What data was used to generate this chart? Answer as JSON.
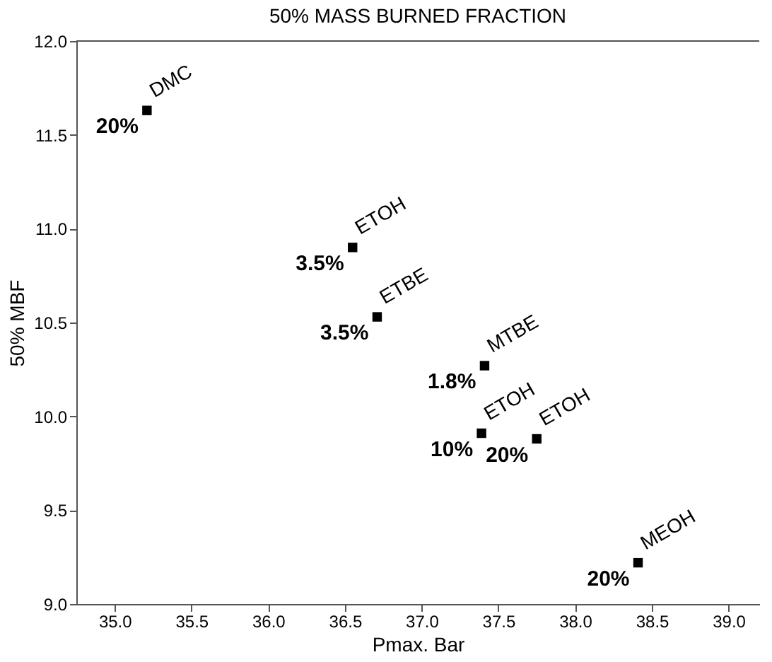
{
  "chart_data": {
    "type": "scatter",
    "title": "50% MASS BURNED FRACTION",
    "xlabel": "Pmax. Bar",
    "ylabel": "50% MBF",
    "x": [
      35.21,
      36.55,
      36.71,
      37.41,
      37.39,
      37.75,
      38.41
    ],
    "series": [
      {
        "color": "#000000",
        "values": [
          11.63,
          10.9,
          10.53,
          10.27,
          9.91,
          9.88,
          9.22
        ],
        "value_labels": [
          "DMC",
          "ETOH",
          "ETBE",
          "MTBE",
          "ETOH",
          "ETOH",
          "MEOH"
        ]
      }
    ],
    "annotations": [
      {
        "text": "20%",
        "x": 35.21,
        "y": 11.63
      },
      {
        "text": "3.5%",
        "x": 36.55,
        "y": 10.9
      },
      {
        "text": "3.5%",
        "x": 36.71,
        "y": 10.53
      },
      {
        "text": "1.8%",
        "x": 37.41,
        "y": 10.27
      },
      {
        "text": "10%",
        "x": 37.39,
        "y": 9.91
      },
      {
        "text": "20%",
        "x": 37.75,
        "y": 9.88
      },
      {
        "text": "20%",
        "x": 38.41,
        "y": 9.22
      }
    ],
    "xlim": [
      34.75,
      39.2
    ],
    "ylim": [
      9.0,
      12.0
    ],
    "xticks": [
      {
        "value": 35.0,
        "label": "35.0"
      },
      {
        "value": 35.5,
        "label": "35.5"
      },
      {
        "value": 36.0,
        "label": "36.0"
      },
      {
        "value": 36.5,
        "label": "36.5"
      },
      {
        "value": 37.0,
        "label": "37.0"
      },
      {
        "value": 37.5,
        "label": "37.5"
      },
      {
        "value": 38.0,
        "label": "38.0"
      },
      {
        "value": 38.5,
        "label": "38.5"
      },
      {
        "value": 39.0,
        "label": "39.0"
      }
    ],
    "yticks": [
      {
        "value": 9.0,
        "label": "9.0"
      },
      {
        "value": 9.5,
        "label": "9.5"
      },
      {
        "value": 10.0,
        "label": "10.0"
      },
      {
        "value": 10.5,
        "label": "10.5"
      },
      {
        "value": 11.0,
        "label": "11.0"
      },
      {
        "value": 11.5,
        "label": "11.5"
      },
      {
        "value": 12.0,
        "label": "12.0"
      }
    ],
    "marker": "square",
    "grid": false
  }
}
